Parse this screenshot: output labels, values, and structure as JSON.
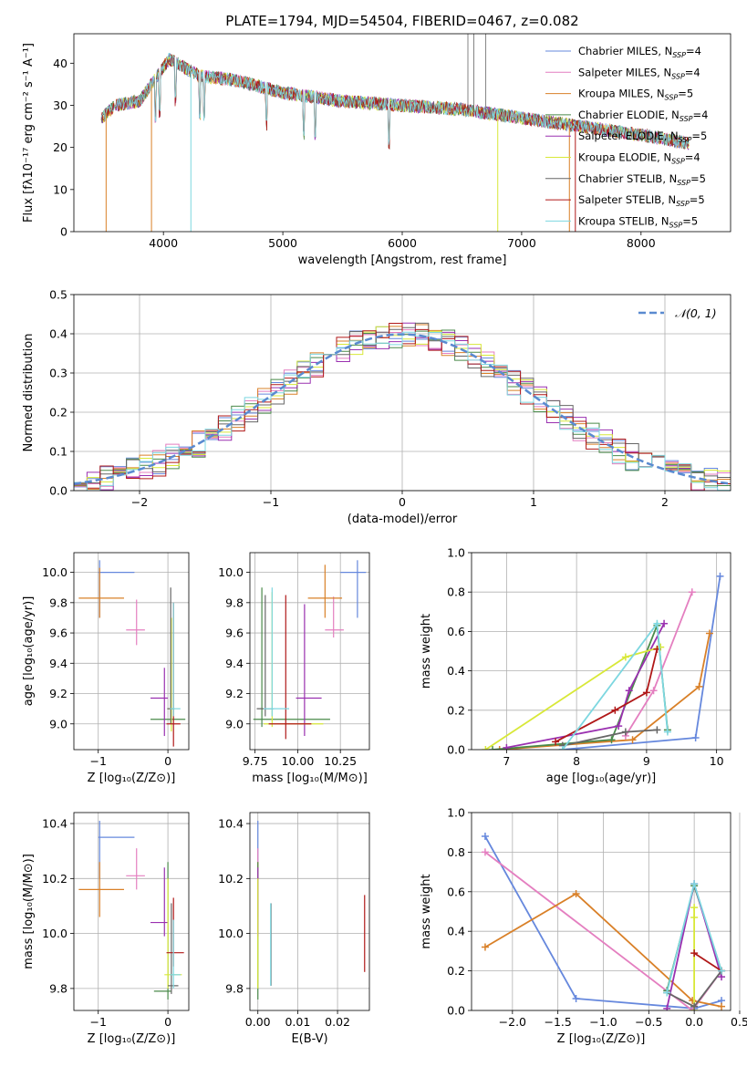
{
  "figure_title": "PLATE=1794, MJD=54504, FIBERID=0467, z=0.082",
  "colors": [
    "#6688dd",
    "#e47fc0",
    "#d98028",
    "#4a8a4a",
    "#9a30b0",
    "#d8e838",
    "#666666",
    "#b01818",
    "#7dd7e0"
  ],
  "chart_data": [
    {
      "id": "spectrum",
      "type": "line",
      "xlabel": "wavelength [Angstrom, rest frame]",
      "ylabel": "Flux [fλ10⁻¹⁷ erg cm⁻² s⁻¹ A⁻¹]",
      "xlim": [
        3250,
        8750
      ],
      "ylim": [
        0,
        47
      ],
      "xticks": [
        "4000",
        "5000",
        "6000",
        "7000",
        "8000"
      ],
      "yticks": [
        "0",
        "10",
        "20",
        "30",
        "40"
      ],
      "grid": false,
      "legend": "top-right",
      "continuum": [
        [
          3480,
          27
        ],
        [
          3600,
          30
        ],
        [
          3800,
          31
        ],
        [
          3950,
          37
        ],
        [
          4050,
          41
        ],
        [
          4300,
          37
        ],
        [
          4600,
          36
        ],
        [
          5000,
          33
        ],
        [
          5500,
          31
        ],
        [
          6000,
          30
        ],
        [
          6500,
          29
        ],
        [
          7000,
          27
        ],
        [
          7500,
          25
        ],
        [
          8000,
          23
        ],
        [
          8400,
          21
        ]
      ],
      "series": [
        {
          "name": "Chabrier MILES, N_SSP=4",
          "label": "Chabrier MILES, N",
          "sub": "SSP",
          "suffix": "=4"
        },
        {
          "name": "Salpeter MILES, N_SSP=4",
          "label": "Salpeter MILES, N",
          "sub": "SSP",
          "suffix": "=4"
        },
        {
          "name": "Kroupa MILES, N_SSP=5",
          "label": "Kroupa MILES, N",
          "sub": "SSP",
          "suffix": "=5"
        },
        {
          "name": "Chabrier ELODIE, N_SSP=4",
          "label": "Chabrier ELODIE, N",
          "sub": "SSP",
          "suffix": "=4"
        },
        {
          "name": "Salpeter ELODIE, N_SSP=5",
          "label": "Salpeter ELODIE, N",
          "sub": "SSP",
          "suffix": "=5"
        },
        {
          "name": "Kroupa ELODIE, N_SSP=4",
          "label": "Kroupa ELODIE, N",
          "sub": "SSP",
          "suffix": "=4"
        },
        {
          "name": "Chabrier STELIB, N_SSP=5",
          "label": "Chabrier STELIB, N",
          "sub": "SSP",
          "suffix": "=5"
        },
        {
          "name": "Salpeter STELIB, N_SSP=5",
          "label": "Salpeter STELIB, N",
          "sub": "SSP",
          "suffix": "=5"
        },
        {
          "name": "Kroupa STELIB, N_SSP=5",
          "label": "Kroupa STELIB, N",
          "sub": "SSP",
          "suffix": "=5"
        }
      ]
    },
    {
      "id": "residuals",
      "type": "histogram",
      "xlabel": "(data-model)/error",
      "ylabel": "Normed distribution",
      "xlim": [
        -2.5,
        2.5
      ],
      "ylim": [
        0,
        0.5
      ],
      "xticks": [
        "−2",
        "−1",
        "0",
        "1",
        "2"
      ],
      "yticks": [
        "0.0",
        "0.1",
        "0.2",
        "0.3",
        "0.4",
        "0.5"
      ],
      "grid": true,
      "legend": "top-right",
      "reference_label": "𝒩(0, 1)",
      "reference": {
        "mean": 0,
        "sigma": 1
      }
    },
    {
      "id": "Z-age",
      "type": "errorbar",
      "xlabel": "Z [log₁₀(Z/Z⊙)]",
      "ylabel": "age  [log₁₀(age/yr)]",
      "xlim": [
        -1.35,
        0.3
      ],
      "ylim": [
        8.83,
        10.13
      ],
      "xticks": [
        "−1",
        "0"
      ],
      "yticks": [
        "9.0",
        "9.2",
        "9.4",
        "9.6",
        "9.8",
        "10.0"
      ],
      "grid": true,
      "points": [
        {
          "series": 0,
          "x": -0.98,
          "y": 10.0,
          "xerr": [
            0.02,
            0.5
          ],
          "yerr": [
            0.3,
            0.08
          ]
        },
        {
          "series": 1,
          "x": -0.45,
          "y": 9.62,
          "xerr": [
            0.15,
            0.12
          ],
          "yerr": [
            0.1,
            0.2
          ]
        },
        {
          "series": 2,
          "x": -0.98,
          "y": 9.83,
          "xerr": [
            0.3,
            0.35
          ],
          "yerr": [
            0.13,
            0.2
          ]
        },
        {
          "series": 3,
          "x": 0.05,
          "y": 9.03,
          "xerr": [
            0.3,
            0.2
          ],
          "yerr": [
            0.02,
            0.05
          ]
        },
        {
          "series": 4,
          "x": -0.05,
          "y": 9.17,
          "xerr": [
            0.2,
            0.05
          ],
          "yerr": [
            0.25,
            0.2
          ]
        },
        {
          "series": 5,
          "x": 0.05,
          "y": 9.1,
          "xerr": [
            0.05,
            0.05
          ],
          "yerr": [
            0.15,
            0.6
          ]
        },
        {
          "series": 6,
          "x": 0.04,
          "y": 9.1,
          "xerr": [
            0.05,
            0.05
          ],
          "yerr": [
            0.1,
            0.8
          ]
        },
        {
          "series": 7,
          "x": 0.08,
          "y": 9.0,
          "xerr": [
            0.1,
            0.1
          ],
          "yerr": [
            0.15,
            0.8
          ]
        },
        {
          "series": 8,
          "x": 0.08,
          "y": 9.1,
          "xerr": [
            0.05,
            0.1
          ],
          "yerr": [
            0.05,
            0.7
          ]
        }
      ]
    },
    {
      "id": "mass-age",
      "type": "errorbar",
      "xlabel": "mass [log₁₀(M/M⊙)]",
      "ylabel": "",
      "xlim": [
        9.72,
        10.42
      ],
      "ylim": [
        8.83,
        10.13
      ],
      "xticks": [
        "9.75",
        "10.00",
        "10.25"
      ],
      "yticks": [
        "9.0",
        "9.2",
        "9.4",
        "9.6",
        "9.8",
        "10.0"
      ],
      "grid": true,
      "points": [
        {
          "series": 0,
          "x": 10.35,
          "y": 10.0,
          "xerr": [
            0.1,
            0.05
          ],
          "yerr": [
            0.3,
            0.08
          ]
        },
        {
          "series": 1,
          "x": 10.21,
          "y": 9.62,
          "xerr": [
            0.05,
            0.06
          ],
          "yerr": [
            0.05,
            0.22
          ]
        },
        {
          "series": 2,
          "x": 10.16,
          "y": 9.83,
          "xerr": [
            0.1,
            0.1
          ],
          "yerr": [
            0.13,
            0.22
          ]
        },
        {
          "series": 3,
          "x": 9.79,
          "y": 9.03,
          "xerr": [
            0.05,
            0.4
          ],
          "yerr": [
            0.05,
            0.87
          ]
        },
        {
          "series": 4,
          "x": 10.04,
          "y": 9.17,
          "xerr": [
            0.05,
            0.1
          ],
          "yerr": [
            0.25,
            0.62
          ]
        },
        {
          "series": 5,
          "x": 9.85,
          "y": 9.0,
          "xerr": [
            0.05,
            0.3
          ],
          "yerr": [
            0.02,
            0.87
          ]
        },
        {
          "series": 6,
          "x": 9.81,
          "y": 9.1,
          "xerr": [
            0.05,
            0.05
          ],
          "yerr": [
            0.05,
            0.75
          ]
        },
        {
          "series": 7,
          "x": 9.93,
          "y": 9.0,
          "xerr": [
            0.1,
            0.15
          ],
          "yerr": [
            0.1,
            0.85
          ]
        },
        {
          "series": 8,
          "x": 9.85,
          "y": 9.1,
          "xerr": [
            0.05,
            0.1
          ],
          "yerr": [
            0.05,
            0.8
          ]
        }
      ]
    },
    {
      "id": "age-weight",
      "type": "line",
      "xlabel": "age  [log₁₀(age/yr)]",
      "ylabel": "mass weight",
      "xlim": [
        6.5,
        10.2
      ],
      "ylim": [
        0,
        1
      ],
      "xticks": [
        "7",
        "8",
        "9",
        "10"
      ],
      "yticks": [
        "0.0",
        "0.2",
        "0.4",
        "0.6",
        "0.8",
        "1.0"
      ],
      "grid": true,
      "series": [
        {
          "series": 0,
          "x": [
            7.8,
            9.7,
            10.05
          ],
          "y": [
            0.0,
            0.06,
            0.88
          ]
        },
        {
          "series": 1,
          "x": [
            8.7,
            9.1,
            9.65
          ],
          "y": [
            0.07,
            0.3,
            0.8
          ]
        },
        {
          "series": 2,
          "x": [
            6.9,
            8.8,
            9.75,
            9.9
          ],
          "y": [
            0.0,
            0.05,
            0.32,
            0.59
          ]
        },
        {
          "series": 3,
          "x": [
            6.8,
            8.5,
            9.15,
            9.3
          ],
          "y": [
            0.0,
            0.05,
            0.63,
            0.1
          ]
        },
        {
          "series": 4,
          "x": [
            7.0,
            8.6,
            8.75,
            9.25
          ],
          "y": [
            0.01,
            0.12,
            0.3,
            0.64
          ]
        },
        {
          "series": 5,
          "x": [
            6.7,
            8.7,
            9.2
          ],
          "y": [
            0.0,
            0.47,
            0.52
          ]
        },
        {
          "series": 6,
          "x": [
            7.8,
            8.7,
            9.15
          ],
          "y": [
            0.02,
            0.09,
            0.1
          ]
        },
        {
          "series": 7,
          "x": [
            7.7,
            8.55,
            9.0,
            9.15
          ],
          "y": [
            0.04,
            0.2,
            0.29,
            0.51
          ]
        },
        {
          "series": 8,
          "x": [
            7.8,
            9.15,
            9.3
          ],
          "y": [
            0.0,
            0.64,
            0.09
          ]
        }
      ]
    },
    {
      "id": "Z-mass",
      "type": "errorbar",
      "xlabel": "Z [log₁₀(Z/Z⊙)]",
      "ylabel": "mass [log₁₀(M/M⊙)]",
      "xlim": [
        -1.35,
        0.3
      ],
      "ylim": [
        9.72,
        10.44
      ],
      "xticks": [
        "−1",
        "0"
      ],
      "yticks": [
        "9.8",
        "10.0",
        "10.2",
        "10.4"
      ],
      "grid": true,
      "points": [
        {
          "series": 0,
          "x": -0.98,
          "y": 10.35,
          "xerr": [
            0.02,
            0.5
          ],
          "yerr": [
            0.15,
            0.06
          ]
        },
        {
          "series": 1,
          "x": -0.45,
          "y": 10.21,
          "xerr": [
            0.15,
            0.12
          ],
          "yerr": [
            0.05,
            0.1
          ]
        },
        {
          "series": 2,
          "x": -0.98,
          "y": 10.16,
          "xerr": [
            0.3,
            0.35
          ],
          "yerr": [
            0.1,
            0.1
          ]
        },
        {
          "series": 3,
          "x": 0.0,
          "y": 9.79,
          "xerr": [
            0.2,
            0.05
          ],
          "yerr": [
            0.03,
            0.47
          ]
        },
        {
          "series": 4,
          "x": -0.05,
          "y": 10.04,
          "xerr": [
            0.2,
            0.05
          ],
          "yerr": [
            0.05,
            0.2
          ]
        },
        {
          "series": 5,
          "x": 0.0,
          "y": 9.85,
          "xerr": [
            0.05,
            0.2
          ],
          "yerr": [
            0.05,
            0.35
          ]
        },
        {
          "series": 6,
          "x": 0.05,
          "y": 9.81,
          "xerr": [
            0.05,
            0.1
          ],
          "yerr": [
            0.03,
            0.3
          ]
        },
        {
          "series": 7,
          "x": 0.08,
          "y": 9.93,
          "xerr": [
            0.1,
            0.15
          ],
          "yerr": [
            0.05,
            0.2
          ]
        },
        {
          "series": 8,
          "x": 0.08,
          "y": 9.85,
          "xerr": [
            0.05,
            0.1
          ],
          "yerr": [
            0.05,
            0.2
          ]
        }
      ]
    },
    {
      "id": "EBV-mass",
      "type": "errorbar",
      "xlabel": "E(B-V)",
      "ylabel": "",
      "xlim": [
        -0.002,
        0.028
      ],
      "ylim": [
        9.72,
        10.44
      ],
      "xticks": [
        "0.00",
        "0.01",
        "0.02"
      ],
      "yticks": [
        "9.8",
        "10.0",
        "10.2",
        "10.4"
      ],
      "grid": true,
      "points": [
        {
          "series": 0,
          "x": 0.0,
          "y": 10.35,
          "xerr": [
            0,
            0
          ],
          "yerr": [
            0.15,
            0.06
          ]
        },
        {
          "series": 1,
          "x": 0.0,
          "y": 10.21,
          "xerr": [
            0,
            0
          ],
          "yerr": [
            0.05,
            0.1
          ]
        },
        {
          "series": 2,
          "x": 0.0,
          "y": 10.16,
          "xerr": [
            0,
            0
          ],
          "yerr": [
            0.1,
            0.1
          ]
        },
        {
          "series": 3,
          "x": 0.0,
          "y": 9.79,
          "xerr": [
            0,
            0
          ],
          "yerr": [
            0.03,
            0.47
          ]
        },
        {
          "series": 4,
          "x": 0.0,
          "y": 10.04,
          "xerr": [
            0,
            0
          ],
          "yerr": [
            0.05,
            0.2
          ]
        },
        {
          "series": 5,
          "x": 0.0,
          "y": 9.85,
          "xerr": [
            0,
            0
          ],
          "yerr": [
            0.05,
            0.35
          ]
        },
        {
          "series": 6,
          "x": 0.0033,
          "y": 9.96,
          "xerr": [
            0,
            0
          ],
          "yerr": [
            0.15,
            0.15
          ]
        },
        {
          "series": 7,
          "x": 0.0268,
          "y": 10.0,
          "xerr": [
            0,
            0
          ],
          "yerr": [
            0.14,
            0.14
          ]
        },
        {
          "series": 8,
          "x": 0.0032,
          "y": 9.96,
          "xerr": [
            0,
            0
          ],
          "yerr": [
            0.15,
            0.15
          ]
        }
      ]
    },
    {
      "id": "Z-weight",
      "type": "line",
      "xlabel": "Z [log₁₀(Z/Z⊙)]",
      "ylabel": "mass weight",
      "xlim": [
        -2.45,
        0.4
      ],
      "ylim": [
        0,
        1
      ],
      "xticks": [
        "−2.0",
        "−1.5",
        "−1.0",
        "−0.5",
        "0.0",
        "0.5"
      ],
      "yticks": [
        "0.0",
        "0.2",
        "0.4",
        "0.6",
        "0.8",
        "1.0"
      ],
      "grid": true,
      "series": [
        {
          "series": 0,
          "x": [
            -2.3,
            -1.3,
            0.0,
            0.3
          ],
          "y": [
            0.88,
            0.06,
            0.01,
            0.05
          ]
        },
        {
          "series": 1,
          "x": [
            -2.3,
            -0.02,
            0.3
          ],
          "y": [
            0.8,
            0.0,
            0.2
          ]
        },
        {
          "series": 2,
          "x": [
            -2.3,
            -1.3,
            -0.02,
            0.3
          ],
          "y": [
            0.32,
            0.59,
            0.05,
            0.02
          ]
        },
        {
          "series": 3,
          "x": [
            -0.3,
            0.0,
            0.3
          ],
          "y": [
            0.1,
            0.63,
            0.2
          ]
        },
        {
          "series": 4,
          "x": [
            -0.3,
            0.0,
            0.3
          ],
          "y": [
            0.01,
            0.64,
            0.17
          ]
        },
        {
          "series": 5,
          "x": [
            0.0,
            0.0,
            0.0
          ],
          "y": [
            0.47,
            0.52,
            0.0
          ]
        },
        {
          "series": 6,
          "x": [
            -0.3,
            0.0,
            0.3
          ],
          "y": [
            0.09,
            0.02,
            0.2
          ]
        },
        {
          "series": 7,
          "x": [
            0.0,
            0.3
          ],
          "y": [
            0.29,
            0.2
          ]
        },
        {
          "series": 8,
          "x": [
            -0.3,
            0.0,
            0.3
          ],
          "y": [
            0.09,
            0.64,
            0.2
          ]
        }
      ]
    }
  ]
}
